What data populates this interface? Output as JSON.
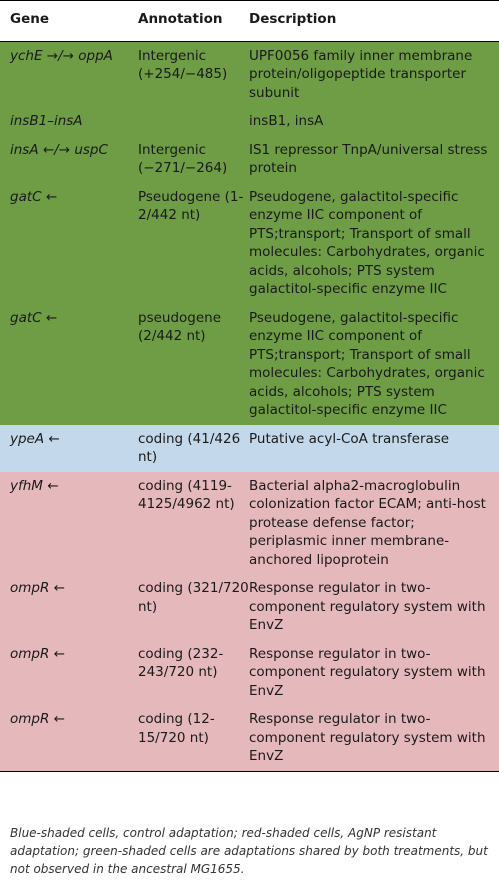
{
  "header": {
    "gene": "Gene",
    "annotation": "Annotation",
    "description": "Description"
  },
  "colors": {
    "green": "#6e9d45",
    "blue": "#c3d8ea",
    "red": "#e5b8bc"
  },
  "rows": [
    {
      "shade": "green",
      "gene": "ychE →/→ oppA",
      "annotation": "Intergenic (+254/−485)",
      "description": "UPF0056 family inner membrane protein/oligopeptide transporter subunit"
    },
    {
      "shade": "green",
      "gene": "insB1–insA",
      "annotation": "",
      "description": "insB1, insA"
    },
    {
      "shade": "green",
      "gene": "insA ←/→ uspC",
      "annotation": "Intergenic (−271/−264)",
      "description": "IS1 repressor TnpA/universal stress protein"
    },
    {
      "shade": "green",
      "gene": "gatC ←",
      "annotation": "Pseudogene (1-2/442 nt)",
      "description": "Pseudogene, galactitol-specific enzyme IIC component of PTS;transport; Transport of small molecules: Carbohydrates, organic acids, alcohols; PTS system galactitol-specific enzyme IIC"
    },
    {
      "shade": "green",
      "gene": "gatC ←",
      "annotation": "pseudogene (2/442 nt)",
      "description": "Pseudogene, galactitol-specific enzyme IIC component of PTS;transport; Transport of small molecules: Carbohydrates, organic acids, alcohols; PTS system galactitol-specific enzyme IIC"
    },
    {
      "shade": "blue",
      "gene": "ypeA ←",
      "annotation": "coding (41/426 nt)",
      "description": "Putative acyl-CoA transferase"
    },
    {
      "shade": "red",
      "gene": "yfhM ←",
      "annotation": "coding (4119-4125/4962 nt)",
      "description": "Bacterial alpha2-macroglobulin colonization factor ECAM; anti-host protease defense factor; periplasmic inner membrane-anchored lipoprotein"
    },
    {
      "shade": "red",
      "gene": "ompR ←",
      "annotation": "coding (321/720 nt)",
      "description": "Response regulator in two-component regulatory system with EnvZ"
    },
    {
      "shade": "red",
      "gene": "ompR ←",
      "annotation": "coding (232-243/720 nt)",
      "description": "Response regulator in two-component regulatory system with EnvZ"
    },
    {
      "shade": "red",
      "gene": "ompR ←",
      "annotation": "coding (12-15/720 nt)",
      "description": "Response regulator in two-component regulatory system with EnvZ"
    }
  ],
  "caption": "Blue-shaded cells, control adaptation; red-shaded cells, AgNP resistant adaptation; green-shaded cells are adaptations shared by both treatments, but not observed in the ancestral MG1655."
}
